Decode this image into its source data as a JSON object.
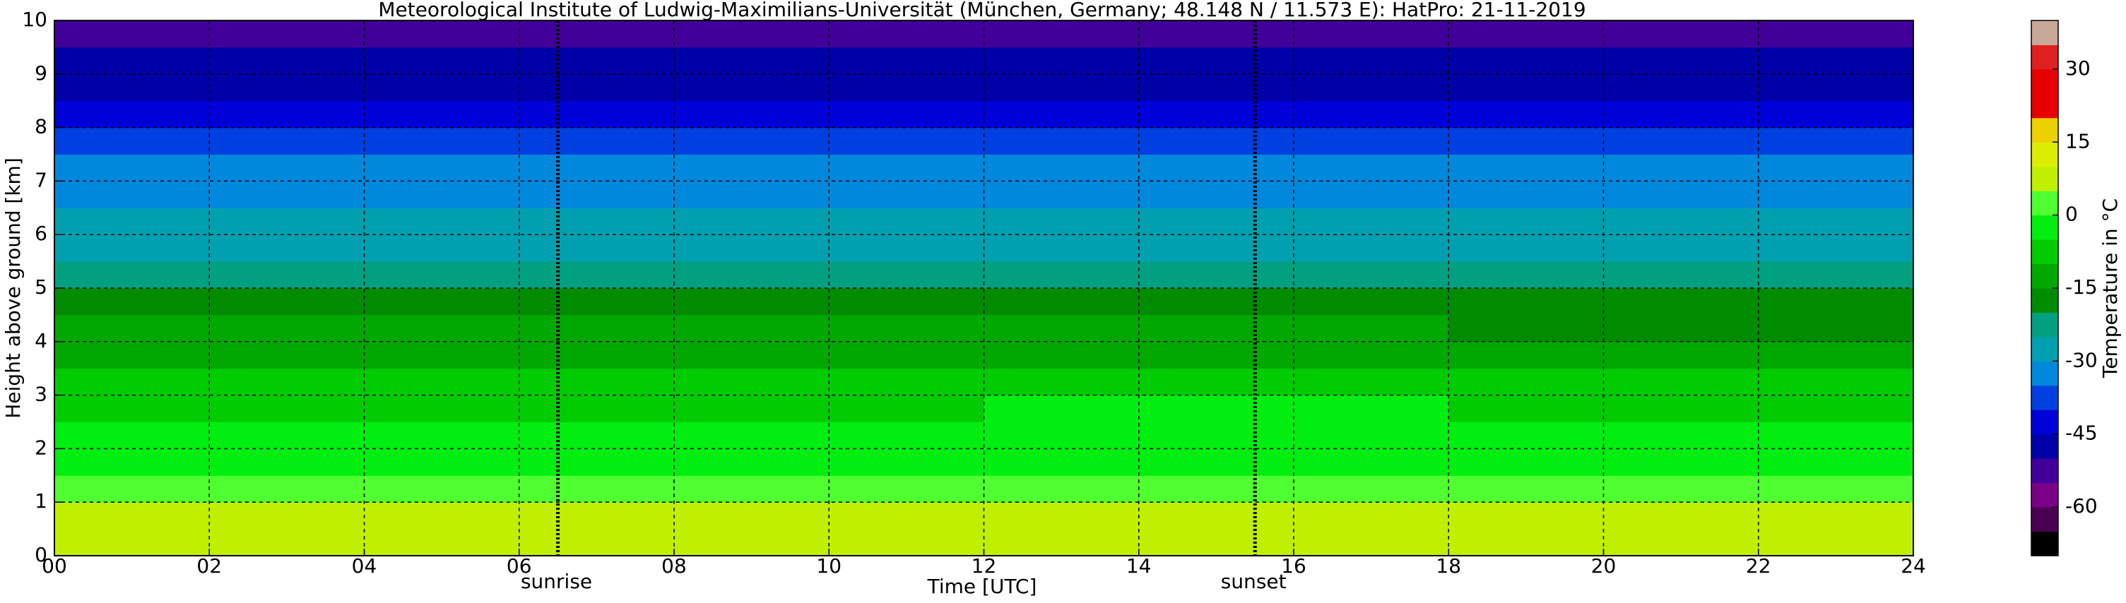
{
  "chart_data": {
    "type": "heatmap",
    "title": "Meteorological Institute of Ludwig-Maximilians-Universität (München, Germany; 48.148 N / 11.573 E):    HatPro: 21-11-2019",
    "x_label": "Time [UTC]",
    "y_label": "Height above ground [km]",
    "x_edges": [
      0,
      6,
      12,
      18,
      24
    ],
    "y_edges": [
      0,
      0.5,
      1,
      1.5,
      2,
      2.5,
      3,
      3.5,
      4,
      4.5,
      5,
      5.5,
      6,
      6.5,
      7,
      7.5,
      8,
      8.5,
      9,
      9.5,
      10
    ],
    "z": [
      [
        7,
        8,
        9,
        9
      ],
      [
        6,
        6,
        7,
        7
      ],
      [
        3,
        2,
        3,
        4
      ],
      [
        -2,
        -2,
        -1,
        -1
      ],
      [
        -3,
        -3,
        -3,
        -3
      ],
      [
        -6,
        -6,
        -5,
        -6
      ],
      [
        -8,
        -8,
        -8,
        -9
      ],
      [
        -11,
        -11,
        -11,
        -12
      ],
      [
        -14,
        -14,
        -15,
        -16
      ],
      [
        -17,
        -17,
        -18,
        -19
      ],
      [
        -22,
        -21,
        -21,
        -22
      ],
      [
        -26,
        -26,
        -26,
        -27
      ],
      [
        -29,
        -29,
        -29,
        -30
      ],
      [
        -31,
        -31,
        -32,
        -32
      ],
      [
        -34,
        -34,
        -35,
        -35
      ],
      [
        -38,
        -38,
        -39,
        -39
      ],
      [
        -42,
        -42,
        -43,
        -44
      ],
      [
        -46,
        -46,
        -47,
        -47
      ],
      [
        -48,
        -48,
        -49,
        -49
      ],
      [
        -52,
        -51,
        -52,
        -53
      ]
    ],
    "xlim": [
      0,
      24
    ],
    "ylim": [
      0,
      10
    ],
    "xticks": [
      {
        "value": 0,
        "label": "00"
      },
      {
        "value": 2,
        "label": "02"
      },
      {
        "value": 4,
        "label": "04"
      },
      {
        "value": 6,
        "label": "06"
      },
      {
        "value": 8,
        "label": "08"
      },
      {
        "value": 10,
        "label": "10"
      },
      {
        "value": 12,
        "label": "12"
      },
      {
        "value": 14,
        "label": "14"
      },
      {
        "value": 16,
        "label": "16"
      },
      {
        "value": 18,
        "label": "18"
      },
      {
        "value": 20,
        "label": "20"
      },
      {
        "value": 22,
        "label": "22"
      },
      {
        "value": 24,
        "label": "24"
      }
    ],
    "yticks": [
      0,
      1,
      2,
      3,
      4,
      5,
      6,
      7,
      8,
      9,
      10
    ],
    "grid": true,
    "annotations": [
      {
        "x": 6.5,
        "label": "sunrise"
      },
      {
        "x": 15.5,
        "label": "sunset"
      }
    ],
    "colorbar": {
      "label": "Temperature in °C",
      "lim": [
        -70,
        40
      ],
      "ticks": [
        -60,
        -45,
        -30,
        -15,
        0,
        15,
        30
      ],
      "levels": [
        -70,
        -65,
        -60,
        -55,
        -50,
        -45,
        -40,
        -35,
        -30,
        -25,
        -20,
        -15,
        -10,
        -5,
        0,
        5,
        10,
        15,
        20,
        25,
        30,
        35,
        40
      ],
      "colors": [
        "#000000",
        "#4a0050",
        "#7a0088",
        "#400099",
        "#0000a8",
        "#0000d8",
        "#0040e0",
        "#0088dd",
        "#00a0b0",
        "#00a080",
        "#008c00",
        "#00a800",
        "#00cc00",
        "#00ee10",
        "#50ff30",
        "#c0f000",
        "#dcee00",
        "#ecd000",
        "#e80000",
        "#e80000",
        "#e02020",
        "#c8a898"
      ]
    }
  }
}
